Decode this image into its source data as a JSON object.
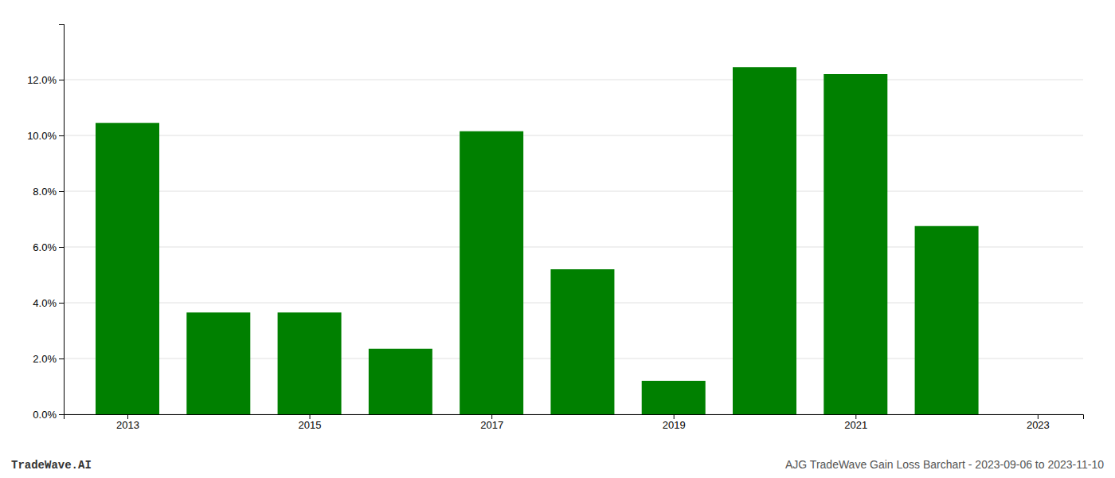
{
  "chart_data": {
    "type": "bar",
    "x": [
      2013,
      2014,
      2015,
      2016,
      2017,
      2018,
      2019,
      2020,
      2021,
      2022
    ],
    "values": [
      0.1045,
      0.0365,
      0.0365,
      0.0235,
      0.1015,
      0.052,
      0.012,
      0.1245,
      0.122,
      0.0675
    ],
    "color": "#008000",
    "xlim": [
      2012.3,
      2023.5
    ],
    "xticks": [
      2013,
      2015,
      2017,
      2019,
      2021,
      2023
    ],
    "ylim": [
      0,
      0.14
    ],
    "yticks": [
      {
        "value": 0.0,
        "label": "0.0%"
      },
      {
        "value": 0.02,
        "label": "2.0%"
      },
      {
        "value": 0.04,
        "label": "4.0%"
      },
      {
        "value": 0.06,
        "label": "6.0%"
      },
      {
        "value": 0.08,
        "label": "8.0%"
      },
      {
        "value": 0.1,
        "label": "10.0%"
      },
      {
        "value": 0.12,
        "label": "12.0%"
      }
    ],
    "grid": true,
    "annotations": [
      "TradeWave.AI",
      "AJG TradeWave Gain Loss Barchart - 2023-09-06 to 2023-11-10"
    ]
  }
}
